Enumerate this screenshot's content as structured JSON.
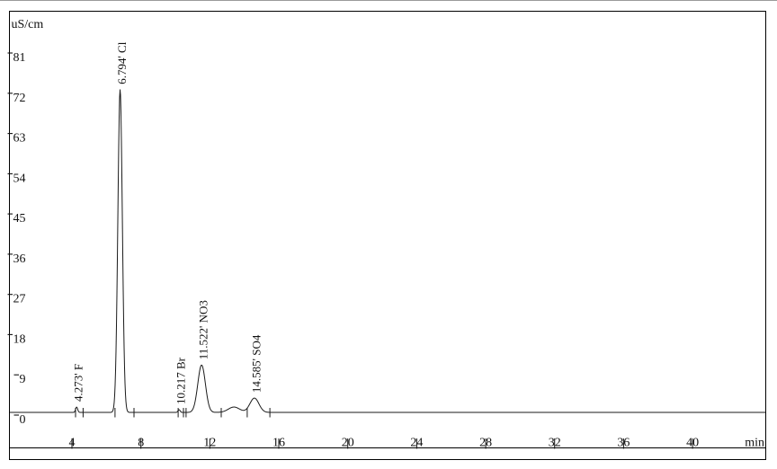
{
  "chart_data": {
    "type": "line",
    "ylabel": "uS/cm",
    "xlabel": "min",
    "y_ticks": [
      0,
      9,
      18,
      27,
      36,
      45,
      54,
      63,
      72,
      81
    ],
    "x_ticks": [
      4,
      8,
      12,
      16,
      20,
      24,
      28,
      32,
      36,
      40
    ],
    "xlim": [
      0.4,
      44.2
    ],
    "ylim": [
      0,
      90
    ],
    "grid": false,
    "baseline_level": 0.3,
    "peaks": [
      {
        "rt_min": 4.273,
        "label": "4.273' F",
        "analyte": "F",
        "height": 1.2,
        "sigma_min": 0.06
      },
      {
        "rt_min": 6.794,
        "label": "6.794' Cl",
        "analyte": "Cl",
        "height": 72.2,
        "sigma_min": 0.13
      },
      {
        "rt_min": 10.217,
        "label": "10.217 Br",
        "analyte": "Br",
        "height": 0.6,
        "sigma_min": 0.06
      },
      {
        "rt_min": 11.522,
        "label": "11.522' NO3",
        "analyte": "NO3",
        "height": 10.6,
        "sigma_min": 0.22
      },
      {
        "rt_min": 13.4,
        "label": "",
        "analyte": "",
        "height": 1.2,
        "sigma_min": 0.33
      },
      {
        "rt_min": 14.585,
        "label": "14.585' SO4",
        "analyte": "SO4",
        "height": 3.2,
        "sigma_min": 0.26
      }
    ],
    "integration_marks_min": [
      4.21,
      4.65,
      6.5,
      7.6,
      10.16,
      10.47,
      10.62,
      12.66,
      14.17,
      15.48
    ]
  }
}
